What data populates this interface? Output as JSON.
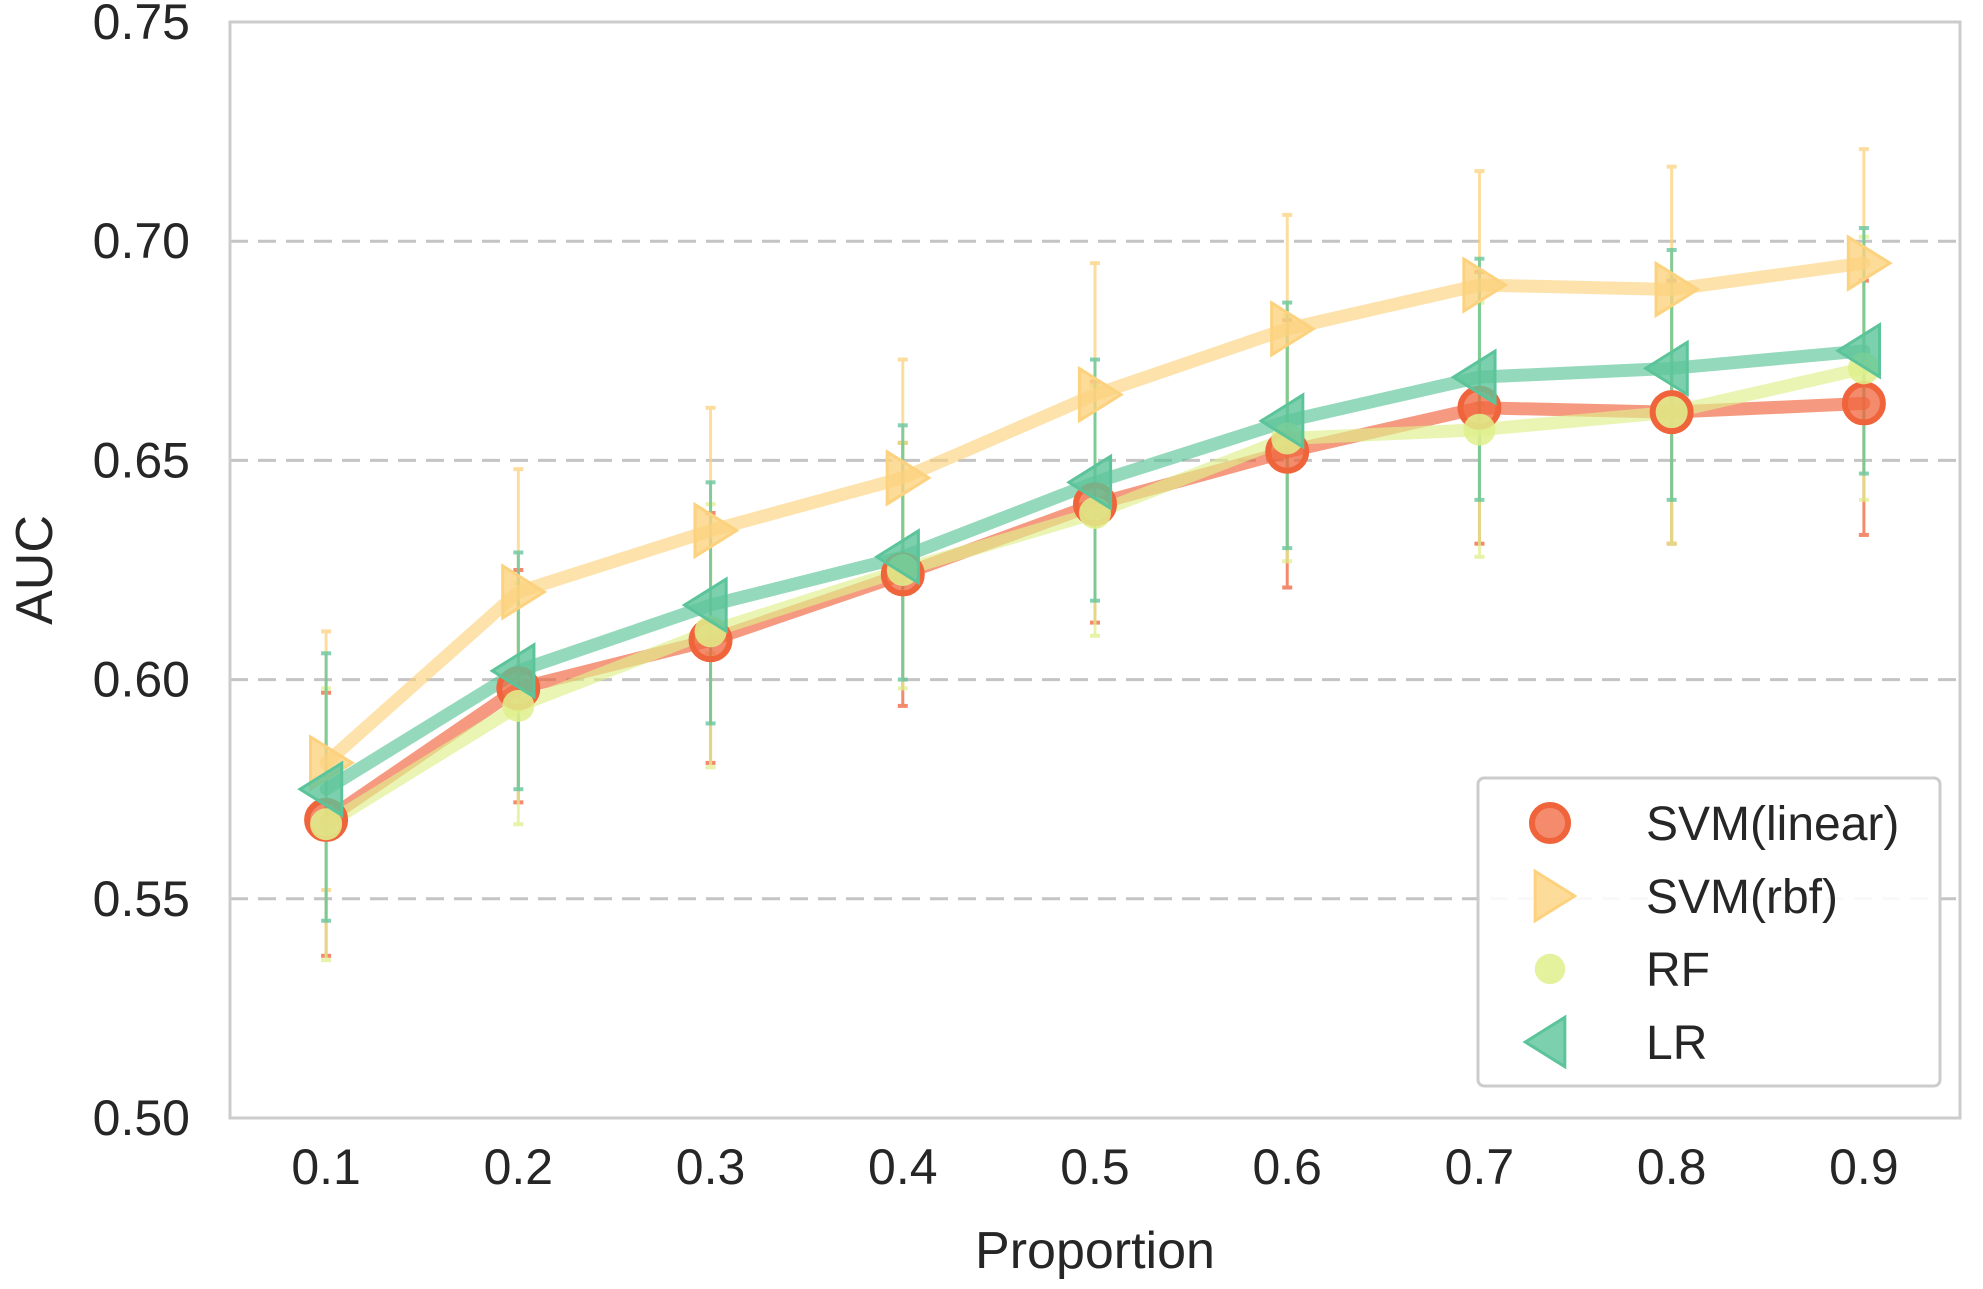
{
  "chart_data": {
    "type": "line",
    "title": "",
    "xlabel": "Proportion",
    "ylabel": "AUC",
    "x": [
      0.1,
      0.2,
      0.3,
      0.4,
      0.5,
      0.6,
      0.7,
      0.8,
      0.9
    ],
    "x_tick_labels": [
      "0.1",
      "0.2",
      "0.3",
      "0.4",
      "0.5",
      "0.6",
      "0.7",
      "0.8",
      "0.9"
    ],
    "xlim": [
      0.05,
      0.95
    ],
    "ylim": [
      0.5,
      0.75
    ],
    "y_ticks": [
      0.5,
      0.55,
      0.6,
      0.65,
      0.7,
      0.75
    ],
    "y_tick_labels": [
      "0.50",
      "0.55",
      "0.60",
      "0.65",
      "0.70",
      "0.75"
    ],
    "grid": "horizontal dashed",
    "legend_position": "lower-right",
    "series": [
      {
        "name": "SVM(linear)",
        "marker": "circle",
        "color": "#F0643C",
        "values": [
          0.568,
          0.598,
          0.609,
          0.624,
          0.64,
          0.652,
          0.662,
          0.661,
          0.663
        ],
        "err_low": [
          0.537,
          0.572,
          0.581,
          0.594,
          0.613,
          0.621,
          0.631,
          0.631,
          0.633
        ],
        "err_high": [
          0.597,
          0.625,
          0.638,
          0.654,
          0.668,
          0.682,
          0.693,
          0.691,
          0.691
        ]
      },
      {
        "name": "SVM(rbf)",
        "marker": "triangle-right",
        "color": "#FCD27E",
        "values": [
          0.581,
          0.62,
          0.634,
          0.646,
          0.665,
          0.68,
          0.69,
          0.689,
          0.695
        ],
        "err_low": [
          0.552,
          0.593,
          0.606,
          0.62,
          0.635,
          0.654,
          0.663,
          0.661,
          0.668
        ],
        "err_high": [
          0.611,
          0.648,
          0.662,
          0.673,
          0.695,
          0.706,
          0.716,
          0.717,
          0.721
        ]
      },
      {
        "name": "RF",
        "marker": "circle-small",
        "color": "#DFF08C",
        "values": [
          0.567,
          0.594,
          0.611,
          0.625,
          0.638,
          0.655,
          0.657,
          0.661,
          0.671
        ],
        "err_low": [
          0.536,
          0.567,
          0.58,
          0.598,
          0.61,
          0.627,
          0.628,
          0.631,
          0.641
        ],
        "err_high": [
          0.598,
          0.622,
          0.64,
          0.654,
          0.667,
          0.683,
          0.686,
          0.692,
          0.701
        ]
      },
      {
        "name": "LR",
        "marker": "triangle-left",
        "color": "#5CC49A",
        "values": [
          0.575,
          0.602,
          0.617,
          0.628,
          0.645,
          0.659,
          0.669,
          0.671,
          0.675
        ],
        "err_low": [
          0.545,
          0.575,
          0.59,
          0.6,
          0.618,
          0.63,
          0.641,
          0.641,
          0.647
        ],
        "err_high": [
          0.606,
          0.629,
          0.645,
          0.658,
          0.673,
          0.686,
          0.696,
          0.698,
          0.703
        ]
      }
    ]
  }
}
